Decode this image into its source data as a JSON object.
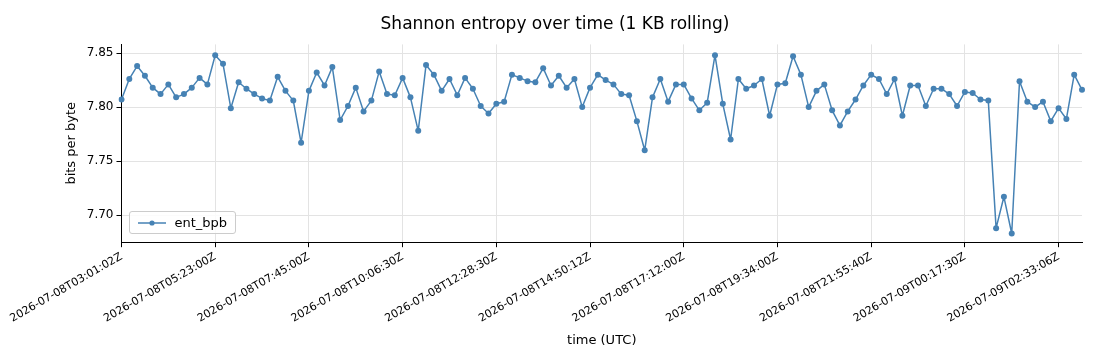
{
  "chart_data": {
    "type": "line",
    "title": "Shannon entropy over time (1 KB rolling)",
    "xlabel": "time (UTC)",
    "ylabel": "bits per byte",
    "categories": [
      "2026-07-08T03:01:02Z",
      null,
      null,
      null,
      null,
      null,
      null,
      null,
      null,
      null,
      null,
      null,
      "2026-07-08T05:23:00Z",
      null,
      null,
      null,
      null,
      null,
      null,
      null,
      null,
      null,
      null,
      null,
      "2026-07-08T07:45:00Z",
      null,
      null,
      null,
      null,
      null,
      null,
      null,
      null,
      null,
      null,
      null,
      "2026-07-08T10:06:30Z",
      null,
      null,
      null,
      null,
      null,
      null,
      null,
      null,
      null,
      null,
      null,
      "2026-07-08T12:28:30Z",
      null,
      null,
      null,
      null,
      null,
      null,
      null,
      null,
      null,
      null,
      null,
      "2026-07-08T14:50:12Z",
      null,
      null,
      null,
      null,
      null,
      null,
      null,
      null,
      null,
      null,
      null,
      "2026-07-08T17:12:00Z",
      null,
      null,
      null,
      null,
      null,
      null,
      null,
      null,
      null,
      null,
      null,
      "2026-07-08T19:34:00Z",
      null,
      null,
      null,
      null,
      null,
      null,
      null,
      null,
      null,
      null,
      null,
      "2026-07-08T21:55:40Z",
      null,
      null,
      null,
      null,
      null,
      null,
      null,
      null,
      null,
      null,
      null,
      "2026-07-09T00:17:30Z",
      null,
      null,
      null,
      null,
      null,
      null,
      null,
      null,
      null,
      null,
      null,
      "2026-07-09T02:33:06Z",
      null,
      null,
      null
    ],
    "series": [
      {
        "name": "ent_bpb",
        "color": "#4682b4",
        "values": [
          7.807,
          7.826,
          7.838,
          7.829,
          7.818,
          7.812,
          7.821,
          7.809,
          7.812,
          7.818,
          7.827,
          7.821,
          7.848,
          7.84,
          7.799,
          7.823,
          7.817,
          7.812,
          7.808,
          7.806,
          7.828,
          7.815,
          7.806,
          7.767,
          7.815,
          7.832,
          7.82,
          7.837,
          7.788,
          7.801,
          7.818,
          7.796,
          7.806,
          7.833,
          7.812,
          7.811,
          7.827,
          7.809,
          7.778,
          7.839,
          7.83,
          7.815,
          7.826,
          7.811,
          7.827,
          7.817,
          7.801,
          7.794,
          7.803,
          7.805,
          7.83,
          7.827,
          7.824,
          7.823,
          7.836,
          7.82,
          7.829,
          7.818,
          7.826,
          7.8,
          7.818,
          7.83,
          7.825,
          7.821,
          7.812,
          7.811,
          7.787,
          7.76,
          7.809,
          7.826,
          7.805,
          7.821,
          7.821,
          7.808,
          7.797,
          7.804,
          7.848,
          7.803,
          7.77,
          7.826,
          7.817,
          7.82,
          7.826,
          7.792,
          7.821,
          7.822,
          7.847,
          7.83,
          7.8,
          7.815,
          7.821,
          7.797,
          7.783,
          7.796,
          7.807,
          7.82,
          7.83,
          7.826,
          7.812,
          7.826,
          7.792,
          7.82,
          7.82,
          7.801,
          7.817,
          7.817,
          7.812,
          7.801,
          7.814,
          7.813,
          7.807,
          7.806,
          7.688,
          7.717,
          7.683,
          7.824,
          7.805,
          7.8,
          7.805,
          7.787,
          7.799,
          7.789,
          7.83,
          7.816
        ]
      }
    ],
    "ylim": [
      7.675,
      7.858
    ],
    "yticks": [
      {
        "value": 7.7,
        "label": "7.70"
      },
      {
        "value": 7.75,
        "label": "7.75"
      },
      {
        "value": 7.8,
        "label": "7.80"
      },
      {
        "value": 7.85,
        "label": "7.85"
      }
    ],
    "grid": true,
    "legend": "bottom left",
    "marker": "circle",
    "line_style": "solid"
  }
}
